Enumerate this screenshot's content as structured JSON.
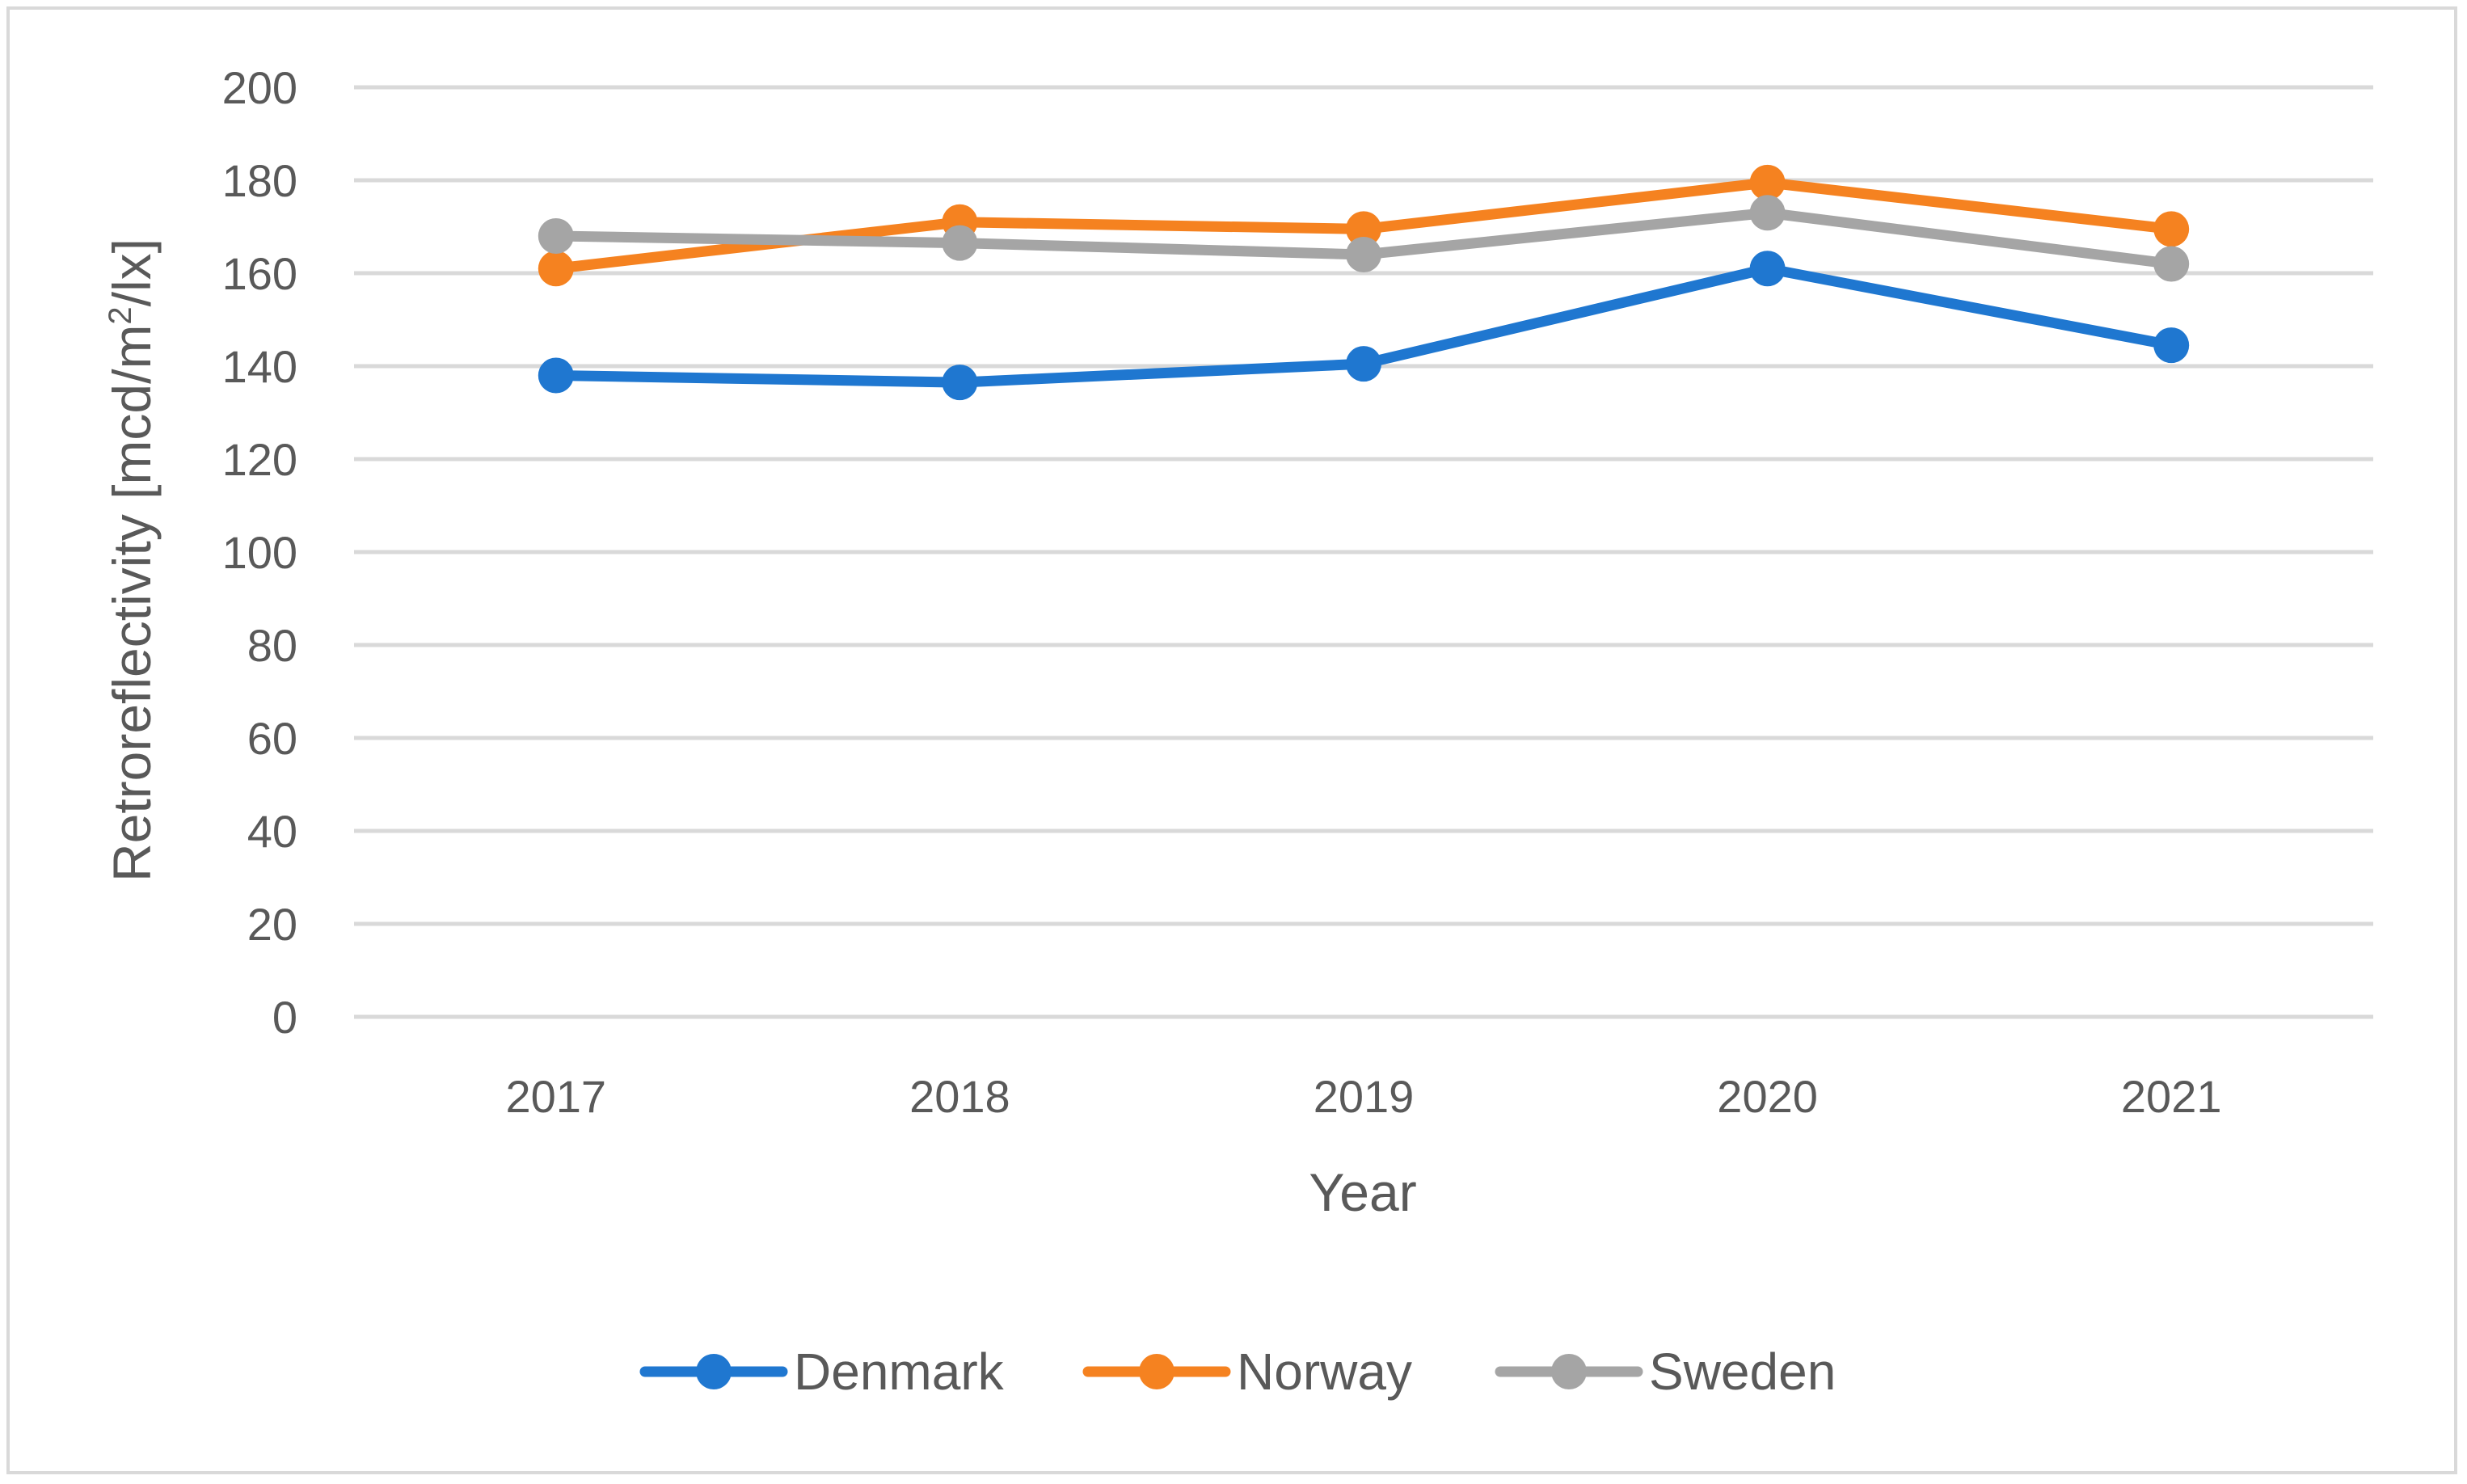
{
  "chart_data": {
    "type": "line",
    "title": "",
    "xlabel": "Year",
    "ylabel_main": "Retroreflectivity [mcd/m",
    "ylabel_sup": "2",
    "ylabel_tail": "/lx]",
    "categories": [
      "2017",
      "2018",
      "2019",
      "2020",
      "2021"
    ],
    "ylim": [
      0,
      200
    ],
    "yticks": [
      0,
      20,
      40,
      60,
      80,
      100,
      120,
      140,
      160,
      180,
      200
    ],
    "grid": true,
    "legend_position": "bottom",
    "series": [
      {
        "name": "Denmark",
        "color": "#1f77d0",
        "values": [
          138,
          136.5,
          140.5,
          161,
          144.5
        ]
      },
      {
        "name": "Norway",
        "color": "#f58220",
        "values": [
          161,
          171,
          169.5,
          179.5,
          169.5
        ]
      },
      {
        "name": "Sweden",
        "color": "#a5a5a5",
        "values": [
          168,
          166.5,
          164,
          173,
          162
        ]
      }
    ]
  }
}
